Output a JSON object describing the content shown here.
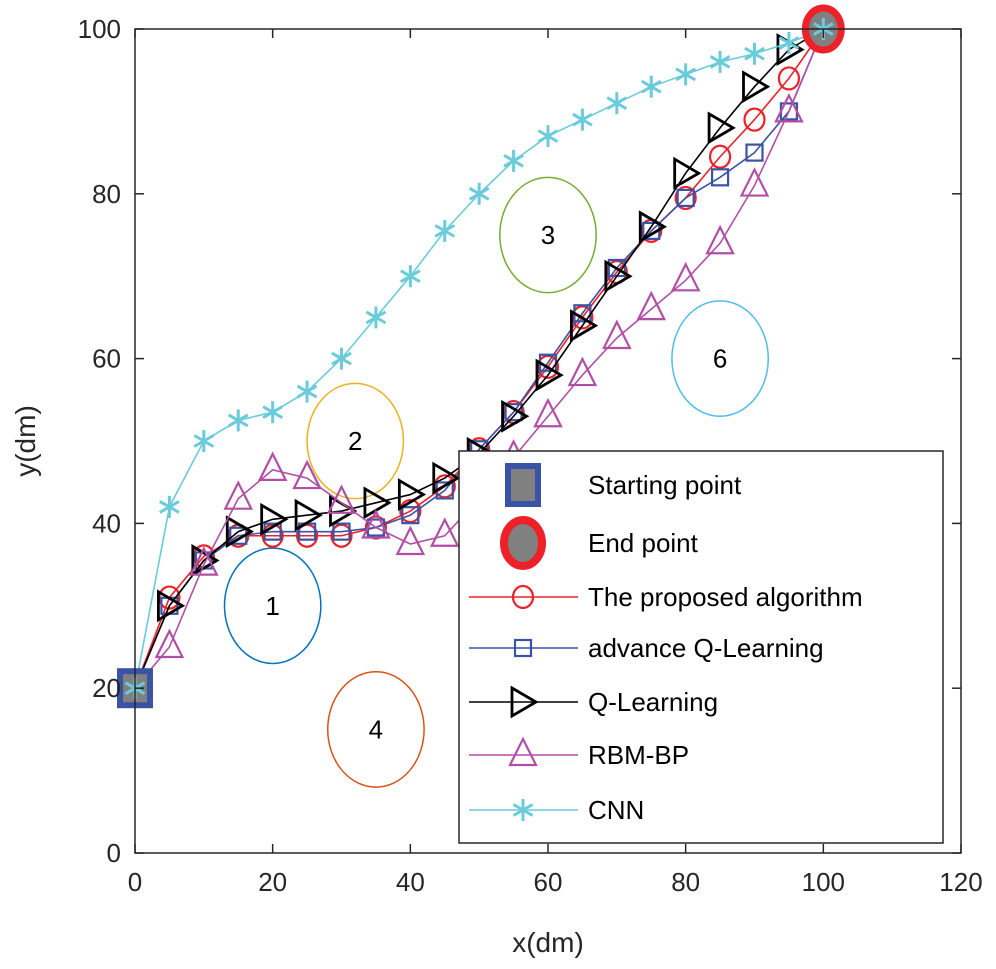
{
  "chart_data": {
    "type": "line",
    "title": "",
    "xlabel": "x(dm)",
    "ylabel": "y(dm)",
    "xlim": [
      0,
      120
    ],
    "ylim": [
      0,
      100
    ],
    "xticks": [
      "0",
      "20",
      "40",
      "60",
      "80",
      "100",
      "120"
    ],
    "yticks": [
      "0",
      "20",
      "40",
      "60",
      "80",
      "100"
    ],
    "grid": false,
    "legend_placement": "bottom-right",
    "x": [
      0,
      5,
      10,
      15,
      20,
      25,
      30,
      35,
      40,
      45,
      50,
      55,
      60,
      65,
      70,
      75,
      80,
      85,
      90,
      95,
      100
    ],
    "series": [
      {
        "name": "The proposed algorithm",
        "color": "#EE2028",
        "marker": "circle",
        "values": [
          20,
          31,
          36,
          38.5,
          38.5,
          38.5,
          38.5,
          39.5,
          41.5,
          44.5,
          49,
          53.5,
          59,
          65,
          70.5,
          75.5,
          79.5,
          84.5,
          89,
          94,
          100
        ]
      },
      {
        "name": "advance Q-Learning",
        "color": "#3A53A4",
        "marker": "square",
        "values": [
          20,
          30,
          35.5,
          38.5,
          39,
          39,
          39,
          39.5,
          41,
          44,
          49,
          53.5,
          59.5,
          65.5,
          71,
          75.5,
          79.5,
          82,
          85,
          90,
          100
        ]
      },
      {
        "name": "Q-Learning",
        "color": "#000000",
        "marker": "triangle-right",
        "values": [
          20,
          30,
          35.5,
          39,
          40.5,
          41,
          41.5,
          42.5,
          43.5,
          45.5,
          48.5,
          53,
          58,
          64,
          70,
          76,
          82.5,
          88,
          93,
          97.5,
          100
        ]
      },
      {
        "name": "RBM-BP",
        "color": "#B04FA5",
        "marker": "triangle-up",
        "values": [
          20,
          25,
          35,
          43,
          46.5,
          45.5,
          42.5,
          39.5,
          37.5,
          38.5,
          43,
          48,
          53,
          58,
          62.5,
          66,
          69.5,
          74,
          81,
          90,
          100
        ]
      },
      {
        "name": "CNN",
        "color": "#6ACCDA",
        "marker": "asterisk",
        "values": [
          20,
          42,
          50,
          52.5,
          53.5,
          56,
          60,
          65,
          70,
          75.5,
          80,
          84,
          87,
          89,
          91,
          93,
          94.5,
          96,
          97,
          98.3,
          100
        ]
      }
    ],
    "start_point": {
      "name": "Starting point",
      "x": 0,
      "y": 20,
      "color": "#3A53A4"
    },
    "end_point": {
      "name": "End point",
      "x": 100,
      "y": 100,
      "color": "#EE2028"
    },
    "obstacles": [
      {
        "label": "1",
        "x": 20,
        "y": 30,
        "r": 7,
        "color": "#0072BD"
      },
      {
        "label": "2",
        "x": 32,
        "y": 50,
        "r": 7,
        "color": "#EDB120"
      },
      {
        "label": "3",
        "x": 60,
        "y": 75,
        "r": 7,
        "color": "#77AC30"
      },
      {
        "label": "4",
        "x": 35,
        "y": 15,
        "r": 7,
        "color": "#D95319"
      },
      {
        "label": "6",
        "x": 85,
        "y": 60,
        "r": 7,
        "color": "#4DBEEE"
      }
    ]
  }
}
